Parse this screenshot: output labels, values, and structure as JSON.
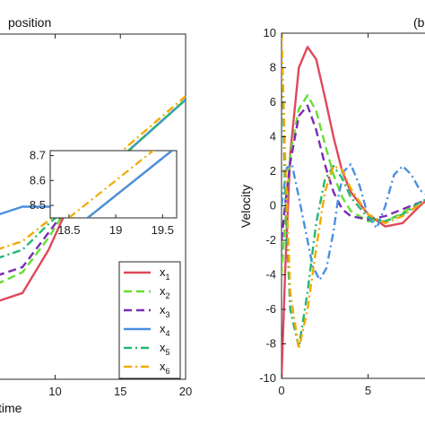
{
  "colors": {
    "x1": "#e0485a",
    "x2": "#66dd33",
    "x3": "#7a2bb5",
    "x4": "#4a90e2",
    "x5": "#22b873",
    "x6": "#f2a900"
  },
  "chart_data": [
    {
      "type": "line",
      "title": "position",
      "xlabel": "time",
      "ylabel": "",
      "xlim": [
        5.5,
        20
      ],
      "xticks": [
        10,
        15,
        20
      ],
      "grid": false,
      "legend_placement": "bottom-right",
      "series": [
        {
          "name": "x",
          "sub": "1",
          "style": "solid",
          "x": [
            5.5,
            7.5,
            9.5,
            11,
            13,
            16,
            20
          ],
          "y": [
            7.45,
            7.5,
            7.75,
            8.0,
            8.15,
            8.35,
            8.62
          ]
        },
        {
          "name": "x",
          "sub": "2",
          "style": "dashed",
          "x": [
            5.5,
            7.5,
            9.5,
            11,
            13,
            16,
            20
          ],
          "y": [
            7.55,
            7.62,
            7.82,
            8.0,
            8.15,
            8.35,
            8.62
          ]
        },
        {
          "name": "x",
          "sub": "3",
          "style": "dashed",
          "x": [
            5.5,
            7.5,
            9.5,
            11,
            13,
            16,
            20
          ],
          "y": [
            7.6,
            7.65,
            7.85,
            8.0,
            8.14,
            8.35,
            8.62
          ]
        },
        {
          "name": "x",
          "sub": "4",
          "style": "solid",
          "x": [
            5.5,
            7.5,
            9.5,
            11,
            13,
            16,
            20
          ],
          "y": [
            7.95,
            8.0,
            8.0,
            8.0,
            8.12,
            8.35,
            8.62
          ]
        },
        {
          "name": "x",
          "sub": "5",
          "style": "dashdot",
          "x": [
            5.5,
            7.5,
            9.5,
            11,
            13,
            16,
            20
          ],
          "y": [
            7.7,
            7.75,
            7.9,
            8.0,
            8.14,
            8.35,
            8.62
          ]
        },
        {
          "name": "x",
          "sub": "6",
          "style": "dashdot",
          "x": [
            5.5,
            7.5,
            9.5,
            11,
            13,
            16,
            20
          ],
          "y": [
            7.75,
            7.8,
            7.92,
            8.02,
            8.18,
            8.38,
            8.64
          ]
        }
      ],
      "inset": {
        "xlim": [
          18.3,
          19.65
        ],
        "ylim": [
          8.45,
          8.72
        ],
        "xticks": [
          18.5,
          19,
          19.5
        ],
        "yticks": [
          8.5,
          8.6,
          8.7
        ],
        "series": [
          {
            "x": [
              18.5,
              19.5
            ],
            "y": [
              8.45,
              8.75
            ],
            "color_key": "x6",
            "style": "dashdot"
          },
          {
            "x": [
              18.7,
              19.6
            ],
            "y": [
              8.45,
              8.72
            ],
            "color_key": "x1",
            "style": "solid"
          },
          {
            "x": [
              18.7,
              19.6
            ],
            "y": [
              8.45,
              8.72
            ],
            "color_key": "x2",
            "style": "dashed"
          },
          {
            "x": [
              18.7,
              19.6
            ],
            "y": [
              8.45,
              8.72
            ],
            "color_key": "x3",
            "style": "dashed"
          },
          {
            "x": [
              18.7,
              19.6
            ],
            "y": [
              8.45,
              8.72
            ],
            "color_key": "x5",
            "style": "dashdot"
          },
          {
            "x": [
              18.7,
              19.6
            ],
            "y": [
              8.45,
              8.72
            ],
            "color_key": "x4",
            "style": "solid"
          }
        ]
      }
    },
    {
      "type": "line",
      "title": "(b",
      "xlabel": "",
      "ylabel": "Velocity",
      "xlim": [
        0,
        8.6
      ],
      "ylim": [
        -10,
        10
      ],
      "xticks": [
        0,
        5
      ],
      "yticks": [
        -10,
        -8,
        -6,
        -4,
        -2,
        0,
        2,
        4,
        6,
        8,
        10
      ],
      "grid": false,
      "series": [
        {
          "key": "x1",
          "style": "solid",
          "x": [
            0,
            0.2,
            0.5,
            1.0,
            1.5,
            2,
            2.5,
            3,
            3.5,
            4,
            5,
            6,
            7,
            8,
            8.6
          ],
          "y": [
            -10,
            -4,
            3,
            8,
            9.2,
            8.5,
            6.3,
            4,
            2,
            0.8,
            -0.5,
            -1.2,
            -1.0,
            0.0,
            0.5
          ]
        },
        {
          "key": "x2",
          "style": "dashed",
          "x": [
            0,
            0.2,
            0.5,
            1.0,
            1.5,
            2,
            2.5,
            3,
            3.5,
            4,
            5,
            6,
            7,
            8,
            8.6
          ],
          "y": [
            -4,
            -1,
            3,
            5.6,
            6.4,
            5.5,
            3.6,
            1.8,
            0.5,
            -0.3,
            -0.9,
            -0.9,
            -0.4,
            0.2,
            0.4
          ]
        },
        {
          "key": "x3",
          "style": "dashed",
          "x": [
            0,
            0.2,
            0.5,
            1.0,
            1.5,
            2,
            2.5,
            3,
            3.5,
            4,
            5,
            6,
            7,
            8,
            8.6
          ],
          "y": [
            -2,
            0,
            2.5,
            5.2,
            5.8,
            4.4,
            2.4,
            0.8,
            -0.2,
            -0.6,
            -0.8,
            -0.6,
            -0.2,
            0.2,
            0.3
          ]
        },
        {
          "key": "x4",
          "style": "dashdot",
          "x": [
            0,
            0.3,
            0.6,
            1.0,
            1.4,
            1.8,
            2.2,
            2.6,
            3,
            3.3,
            3.6,
            4,
            4.5,
            5,
            5.5,
            6,
            6.5,
            7,
            7.5,
            8,
            8.6
          ],
          "y": [
            0,
            2.2,
            2.4,
            0.5,
            -1.5,
            -3.5,
            -4.3,
            -3.6,
            -1.5,
            0.6,
            2.0,
            2.4,
            1.2,
            -0.6,
            -1.3,
            0.0,
            1.8,
            2.3,
            1.8,
            0.9,
            0.5
          ]
        },
        {
          "key": "x5",
          "style": "dashdot",
          "x": [
            0,
            0.2,
            0.5,
            1.0,
            1.5,
            2,
            2.5,
            3,
            3.5,
            4,
            5,
            6,
            7,
            8,
            8.6
          ],
          "y": [
            10,
            1,
            -6,
            -8.2,
            -5,
            -1,
            1.5,
            2.3,
            1.6,
            0.5,
            -0.7,
            -0.9,
            -0.5,
            0.2,
            0.5
          ]
        },
        {
          "key": "x6",
          "style": "dashdot",
          "x": [
            0,
            0.2,
            0.5,
            1.0,
            1.5,
            2,
            2.5,
            3,
            3.5,
            4,
            5,
            6,
            7,
            8,
            8.6
          ],
          "y": [
            10,
            3,
            -5,
            -8.3,
            -6,
            -2.5,
            0.8,
            2.3,
            2.1,
            1.0,
            -0.5,
            -1.0,
            -0.6,
            0.1,
            0.4
          ]
        }
      ]
    }
  ]
}
